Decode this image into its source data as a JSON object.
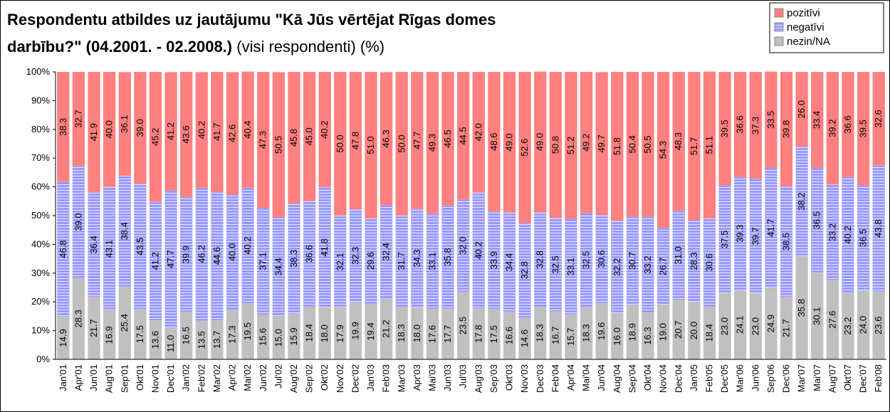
{
  "chart_data": {
    "type": "stacked-bar",
    "title": [
      "Respondentu atbildes uz jautājumu \"Kā Jūs vērtējat Rīgas domes",
      "darbību?\" (04.2001. - 02.2008.)"
    ],
    "subtitle": "(visi respondenti) (%)",
    "categories": [
      "Jan'01",
      "Apr'01",
      "Jun'01",
      "Aug'01",
      "Sep'01",
      "Okt'01",
      "Nov'01",
      "Dec'01",
      "Jan'02",
      "Feb'02",
      "Mar'02",
      "Apr'02",
      "Mai'02",
      "Jun'02",
      "Jul'02",
      "Aug'02",
      "Sep'02",
      "Okt'02",
      "Nov'02",
      "Dec'02",
      "Jan'03",
      "Feb'03",
      "Mar'03",
      "Apr'03",
      "Mai'03",
      "Jun'03",
      "Jul'03",
      "Aug'03",
      "Sep'03",
      "Okt'03",
      "Nov'03",
      "Dec'03",
      "Feb'04",
      "Apr'04",
      "Mai'04",
      "Jun'04",
      "Aug'04",
      "Sep'04",
      "Okt'04",
      "Nov'04",
      "Dec'04",
      "Jan'05",
      "Feb'05",
      "Dec'05",
      "Mar'06",
      "Jun'06",
      "Sep'06",
      "Dec'06",
      "Mar'07",
      "Mai'07",
      "Aug'07",
      "Okt'07",
      "Dec'07",
      "Feb'08"
    ],
    "series": [
      {
        "name": "pozitīvi",
        "color": "#ff8080",
        "values": [
          38.3,
          32.7,
          41.9,
          40.0,
          36.1,
          39.0,
          45.2,
          41.2,
          43.6,
          40.2,
          41.7,
          42.6,
          40.4,
          47.3,
          50.5,
          45.8,
          45.0,
          40.2,
          50.0,
          47.8,
          51.0,
          46.3,
          50.0,
          47.7,
          49.3,
          46.5,
          44.5,
          42.0,
          48.6,
          49.0,
          52.6,
          49.0,
          50.8,
          51.2,
          49.2,
          49.7,
          51.8,
          50.4,
          50.5,
          54.3,
          48.3,
          51.7,
          51.1,
          39.5,
          36.6,
          37.3,
          33.5,
          39.8,
          26.0,
          33.4,
          39.2,
          36.6,
          39.5,
          32.6
        ],
        "value_labels": [
          "38.3",
          "32.7",
          "41.9",
          "40.0",
          "36.1",
          "39.0",
          "45.2",
          "41.2",
          "43.6",
          "40.2",
          "41.7",
          "42.6",
          "40.4",
          "47.3",
          "50.5",
          "45.8",
          "45.0",
          "40.2",
          "50.0",
          "47.8",
          "51.0",
          "46.3",
          "50.0",
          "47.7",
          "49.3",
          "46.5",
          "44.5",
          "42.0",
          "48.6",
          "49.0",
          "52.6",
          "49.0",
          "50.8",
          "51.2",
          "49.2",
          "49.7",
          "51.8",
          "50.4",
          "50.5",
          "54.3",
          "48.3",
          "51.7",
          "51.1",
          "39.5",
          "36.6",
          "37.3",
          "33.5",
          "39.8",
          "26.0",
          "33.4",
          "39.2",
          "36.6",
          "39.5",
          "32.6"
        ]
      },
      {
        "name": "negatīvi",
        "color": "#9999ff",
        "values": [
          46.8,
          39.0,
          36.4,
          43.1,
          38.4,
          43.5,
          41.2,
          47.7,
          39.9,
          46.2,
          44.6,
          40.0,
          40.2,
          37.1,
          34.4,
          38.3,
          36.6,
          41.8,
          32.1,
          32.3,
          29.6,
          32.4,
          31.7,
          34.3,
          33.1,
          35.8,
          32.0,
          40.2,
          33.9,
          34.4,
          32.8,
          32.8,
          32.5,
          33.1,
          32.5,
          30.6,
          32.2,
          30.7,
          33.2,
          26.7,
          31.0,
          28.3,
          30.6,
          37.5,
          39.3,
          39.7,
          41.7,
          38.5,
          38.2,
          36.5,
          33.2,
          40.2,
          36.5,
          43.8
        ],
        "value_labels": [
          "46.8",
          "39.0",
          "36.4",
          "43.1",
          "38.4",
          "43.5",
          "41.2",
          "47.7",
          "39.9",
          "46.2",
          "44.6",
          "40.0",
          "40.2",
          "37.1",
          "34.4",
          "38.3",
          "36.6",
          "41.8",
          "32.1",
          "32.3",
          "29.6",
          "32.4",
          "31.7",
          "34.3",
          "33.1",
          "35.8",
          "32.0",
          "40.2",
          "33.9",
          "34.4",
          "32.8",
          "32.8",
          "32.5",
          "33.1",
          "32.5",
          "30.6",
          "32.2",
          "30.7",
          "33.2",
          "26.7",
          "31.0",
          "28.3",
          "30.6",
          "37.5",
          "39.3",
          "39.7",
          "41.7",
          "38.5",
          "38.2",
          "36.5",
          "33.2",
          "40.2",
          "36.5",
          "43.8"
        ]
      },
      {
        "name": "nezin/NA",
        "color": "#c0c0c0",
        "values": [
          14.9,
          28.3,
          21.7,
          16.9,
          25.4,
          17.5,
          13.6,
          11.0,
          16.5,
          13.5,
          13.7,
          17.3,
          19.5,
          15.6,
          15.0,
          15.9,
          18.4,
          18.0,
          17.9,
          19.9,
          19.4,
          21.2,
          18.3,
          18.0,
          17.6,
          17.7,
          23.5,
          17.8,
          17.5,
          16.6,
          14.6,
          18.3,
          16.7,
          15.7,
          18.3,
          19.6,
          16.0,
          18.9,
          16.3,
          19.0,
          20.7,
          20.0,
          18.4,
          23.0,
          24.1,
          23.0,
          24.9,
          21.7,
          35.8,
          30.1,
          27.6,
          23.2,
          24.0,
          23.6
        ],
        "value_labels": [
          "14.9",
          "28.3",
          "21.7",
          "16.9",
          "25.4",
          "17.5",
          "13.6",
          "11.0",
          "16.5",
          "13.5",
          "13.7",
          "17.3",
          "19.5",
          "15.6",
          "15.0",
          "15.9",
          "18.4",
          "18.0",
          "17.9",
          "19.9",
          "19.4",
          "21.2",
          "18.3",
          "18.0",
          "17.6",
          "17.7",
          "23.5",
          "17.8",
          "17.5",
          "16.6",
          "14.6",
          "18.3",
          "16.7",
          "15.7",
          "18.3",
          "19.6",
          "16.0",
          "18.9",
          "16.3",
          "19.0",
          "20.7",
          "20.0",
          "18.4",
          "23.0",
          "24.1",
          "23.0",
          "24.9",
          "21.7",
          "35.8",
          "30.1",
          "27.6",
          "23.2",
          "24.0",
          "23.6"
        ]
      }
    ],
    "ylim": [
      0,
      100
    ],
    "yticks": [
      {
        "value": 0,
        "label": "0%"
      },
      {
        "value": 10,
        "label": "10%"
      },
      {
        "value": 20,
        "label": "20%"
      },
      {
        "value": 30,
        "label": "30%"
      },
      {
        "value": 40,
        "label": "40%"
      },
      {
        "value": 50,
        "label": "50%"
      },
      {
        "value": 60,
        "label": "60%"
      },
      {
        "value": 70,
        "label": "70%"
      },
      {
        "value": 80,
        "label": "80%"
      },
      {
        "value": 90,
        "label": "90%"
      },
      {
        "value": 100,
        "label": "100%"
      }
    ],
    "legend": "top-right"
  }
}
